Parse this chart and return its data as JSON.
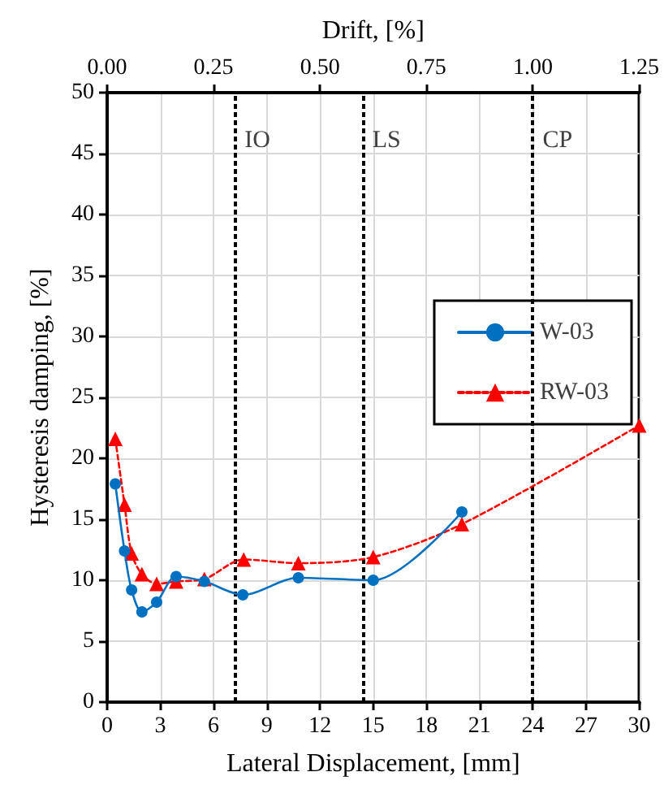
{
  "chart_data": {
    "type": "line",
    "xlabel": "Lateral Displacement, [mm]",
    "ylabel": "Hysteresis damping, [%]",
    "x2label": "Drift, [%]",
    "xlim": [
      0,
      30
    ],
    "xticks": [
      0,
      3,
      6,
      9,
      12,
      15,
      18,
      21,
      24,
      27,
      30
    ],
    "x2lim": [
      0,
      1.25
    ],
    "x2ticks": [
      {
        "value": 0,
        "label": "0.00"
      },
      {
        "value": 0.25,
        "label": "0.25"
      },
      {
        "value": 0.5,
        "label": "0.50"
      },
      {
        "value": 0.75,
        "label": "0.75"
      },
      {
        "value": 1,
        "label": "1.00"
      },
      {
        "value": 1.25,
        "label": "1.25"
      }
    ],
    "ylim": [
      0,
      50
    ],
    "yticks": [
      0,
      5,
      10,
      15,
      20,
      25,
      30,
      35,
      40,
      45,
      50
    ],
    "grid": true,
    "legend": "right",
    "series": [
      {
        "name": "W-03",
        "color": "#0070c0",
        "marker": "circle",
        "line_style": "solid",
        "x": [
          0.46,
          0.98,
          1.38,
          1.96,
          2.79,
          3.89,
          5.48,
          7.65,
          10.78,
          15.0,
          20.0
        ],
        "values": [
          17.9,
          12.4,
          9.2,
          7.4,
          8.2,
          10.3,
          9.9,
          8.8,
          10.2,
          10.0,
          15.6
        ]
      },
      {
        "name": "RW-03",
        "color": "#ff0000",
        "marker": "triangle",
        "line_style": "dashed",
        "x": [
          0.46,
          0.98,
          1.38,
          1.96,
          2.79,
          3.89,
          5.48,
          7.7,
          10.78,
          15.0,
          20.0,
          30.0
        ],
        "values": [
          21.6,
          16.2,
          12.2,
          10.5,
          9.7,
          9.9,
          10.1,
          11.7,
          11.4,
          11.9,
          14.6,
          22.7
        ]
      }
    ],
    "ref_lines": [
      {
        "axis": "x",
        "value": 7.2,
        "label": "IO",
        "color": "#000000",
        "line_style": "dashed"
      },
      {
        "axis": "x",
        "value": 14.4,
        "label": "LS",
        "color": "#000000",
        "line_style": "dashed"
      },
      {
        "axis": "x",
        "value": 24,
        "label": "CP",
        "color": "#000000",
        "line_style": "dashed"
      }
    ]
  }
}
